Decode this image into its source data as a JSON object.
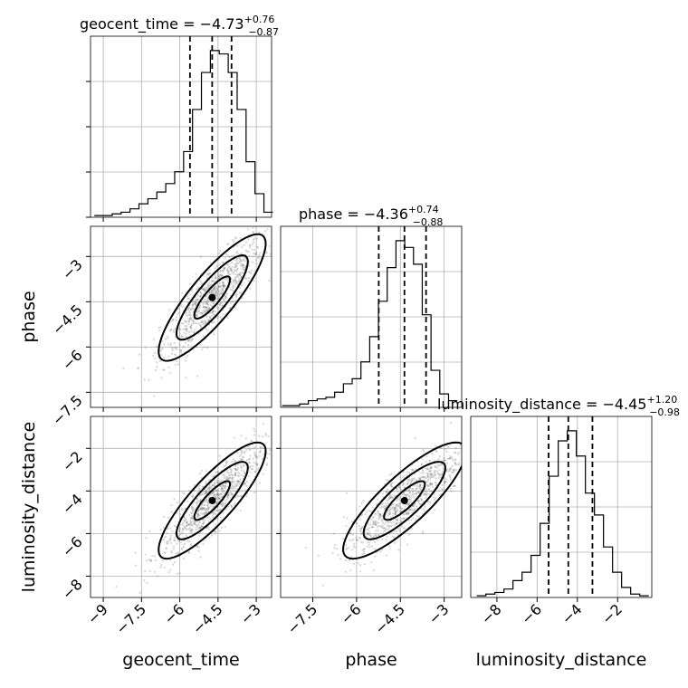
{
  "figure": {
    "type": "corner-plot",
    "parameters": [
      "geocent_time",
      "phase",
      "luminosity_distance"
    ]
  },
  "titles": [
    {
      "param": "geocent_time",
      "prefix": "geocent_time = −4.73",
      "plus": "+0.76",
      "minus": "−0.87"
    },
    {
      "param": "phase",
      "prefix": "phase = −4.36",
      "plus": "+0.74",
      "minus": "−0.88"
    },
    {
      "param": "luminosity_distance",
      "prefix": "luminosity_distance = −4.45",
      "plus": "+1.20",
      "minus": "−0.98"
    }
  ],
  "axis_labels": {
    "x": [
      "geocent_time",
      "phase",
      "luminosity_distance"
    ],
    "y": [
      "phase",
      "luminosity_distance"
    ]
  },
  "chart_data": [
    {
      "type": "histogram",
      "param": "geocent_time",
      "xlim": [
        -9.5,
        -2.4
      ],
      "ylim": [
        0,
        1.0
      ],
      "xticks": [
        -9.0,
        -7.5,
        -6.0,
        -4.5,
        -3.0
      ],
      "quantiles": [
        -5.6,
        -4.73,
        -3.97
      ],
      "bin_edges": [
        -9.35,
        -9.0,
        -8.65,
        -8.3,
        -7.95,
        -7.6,
        -7.25,
        -6.9,
        -6.55,
        -6.2,
        -5.85,
        -5.5,
        -5.15,
        -4.8,
        -4.45,
        -4.1,
        -3.75,
        -3.4,
        -3.05,
        -2.7,
        -2.35
      ],
      "counts": [
        0.01,
        0.01,
        0.02,
        0.03,
        0.05,
        0.08,
        0.11,
        0.15,
        0.2,
        0.27,
        0.39,
        0.64,
        0.86,
        0.99,
        0.97,
        0.86,
        0.64,
        0.33,
        0.14,
        0.03
      ]
    },
    {
      "type": "histogram",
      "param": "phase",
      "xlim": [
        -8.6,
        -2.4
      ],
      "ylim": [
        0,
        1.0
      ],
      "xticks": [
        -7.5,
        -6.0,
        -4.5,
        -3.0
      ],
      "quantiles": [
        -5.24,
        -4.36,
        -3.62
      ],
      "bin_edges": [
        -8.55,
        -8.25,
        -7.95,
        -7.65,
        -7.35,
        -7.05,
        -6.75,
        -6.45,
        -6.15,
        -5.85,
        -5.55,
        -5.25,
        -4.95,
        -4.65,
        -4.35,
        -4.05,
        -3.75,
        -3.45,
        -3.15,
        -2.85,
        -2.55
      ],
      "counts": [
        0.01,
        0.01,
        0.02,
        0.04,
        0.05,
        0.06,
        0.09,
        0.14,
        0.17,
        0.27,
        0.42,
        0.63,
        0.83,
        0.99,
        0.95,
        0.85,
        0.55,
        0.22,
        0.08,
        0.04
      ]
    },
    {
      "type": "histogram",
      "param": "luminosity_distance",
      "xlim": [
        -9.3,
        -0.3
      ],
      "ylim": [
        0,
        1.0
      ],
      "xticks": [
        -8,
        -6,
        -4,
        -2
      ],
      "quantiles": [
        -5.43,
        -4.45,
        -3.25
      ],
      "bin_edges": [
        -9.0,
        -8.55,
        -8.1,
        -7.65,
        -7.2,
        -6.75,
        -6.3,
        -5.85,
        -5.4,
        -4.95,
        -4.5,
        -4.05,
        -3.6,
        -3.15,
        -2.7,
        -2.25,
        -1.8,
        -1.35,
        -0.9,
        -0.45
      ],
      "counts": [
        0.01,
        0.02,
        0.03,
        0.05,
        0.1,
        0.15,
        0.25,
        0.44,
        0.72,
        0.93,
        0.99,
        0.84,
        0.62,
        0.49,
        0.3,
        0.15,
        0.06,
        0.02,
        0.01
      ]
    },
    {
      "type": "scatter",
      "x_param": "geocent_time",
      "y_param": "phase",
      "xlim": [
        -9.5,
        -2.4
      ],
      "ylim": [
        -8.0,
        -2.0
      ],
      "xticks": [
        -9.0,
        -7.5,
        -6.0,
        -4.5,
        -3.0
      ],
      "yticks": [
        -7.5,
        -6.0,
        -4.5,
        -3.0
      ],
      "center": [
        -4.73,
        -4.36
      ],
      "spread": [
        1.0,
        1.0
      ],
      "correlation": 0.85
    },
    {
      "type": "scatter",
      "x_param": "geocent_time",
      "y_param": "luminosity_distance",
      "xlim": [
        -9.5,
        -2.4
      ],
      "ylim": [
        -9.0,
        -0.5
      ],
      "xticks": [
        -9.0,
        -7.5,
        -6.0,
        -4.5,
        -3.0
      ],
      "yticks": [
        -8,
        -6,
        -4,
        -2
      ],
      "center": [
        -4.73,
        -4.45
      ],
      "spread": [
        1.0,
        1.3
      ],
      "correlation": 0.85
    },
    {
      "type": "scatter",
      "x_param": "phase",
      "y_param": "luminosity_distance",
      "xlim": [
        -8.6,
        -2.4
      ],
      "ylim": [
        -9.0,
        -0.5
      ],
      "xticks": [
        -7.5,
        -6.0,
        -4.5,
        -3.0
      ],
      "yticks": [
        -8,
        -6,
        -4,
        -2
      ],
      "center": [
        -4.36,
        -4.45
      ],
      "spread": [
        1.0,
        1.3
      ],
      "correlation": 0.84
    }
  ],
  "colors": {
    "line": "#000000",
    "grid": "#b0b0b0",
    "scatter": "#6b6b6b",
    "contour_fill_outer": "#f2f2f2",
    "contour_fill_mid": "#c8c8c8",
    "contour_fill_inner": "#5a5a5a"
  }
}
